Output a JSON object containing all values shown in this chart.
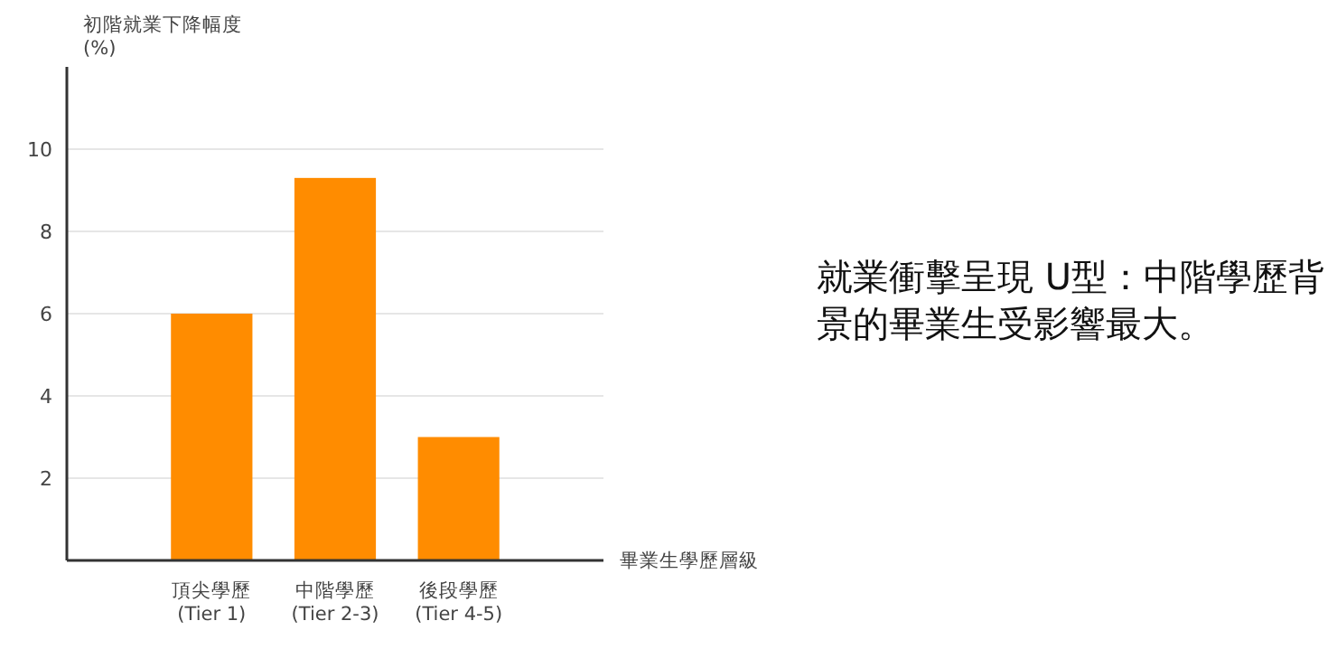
{
  "chart_data": {
    "type": "bar",
    "ylabel": "初階就業下降幅度\n(%)",
    "xlabel": "畢業生學歷層級",
    "categories": [
      "頂尖學歷\n(Tier 1)",
      "中階學歷\n(Tier 2-3)",
      "後段學歷\n(Tier 4-5)"
    ],
    "values": [
      6.0,
      9.3,
      3.0
    ],
    "color": "#ff8c00",
    "ylim": [
      0,
      12
    ],
    "yticks": [
      2,
      4,
      6,
      8,
      10
    ],
    "grid": "y",
    "annotations": [
      "就業衝擊呈現 U型：中階學歷背景的畢業生受影響最大。"
    ]
  }
}
